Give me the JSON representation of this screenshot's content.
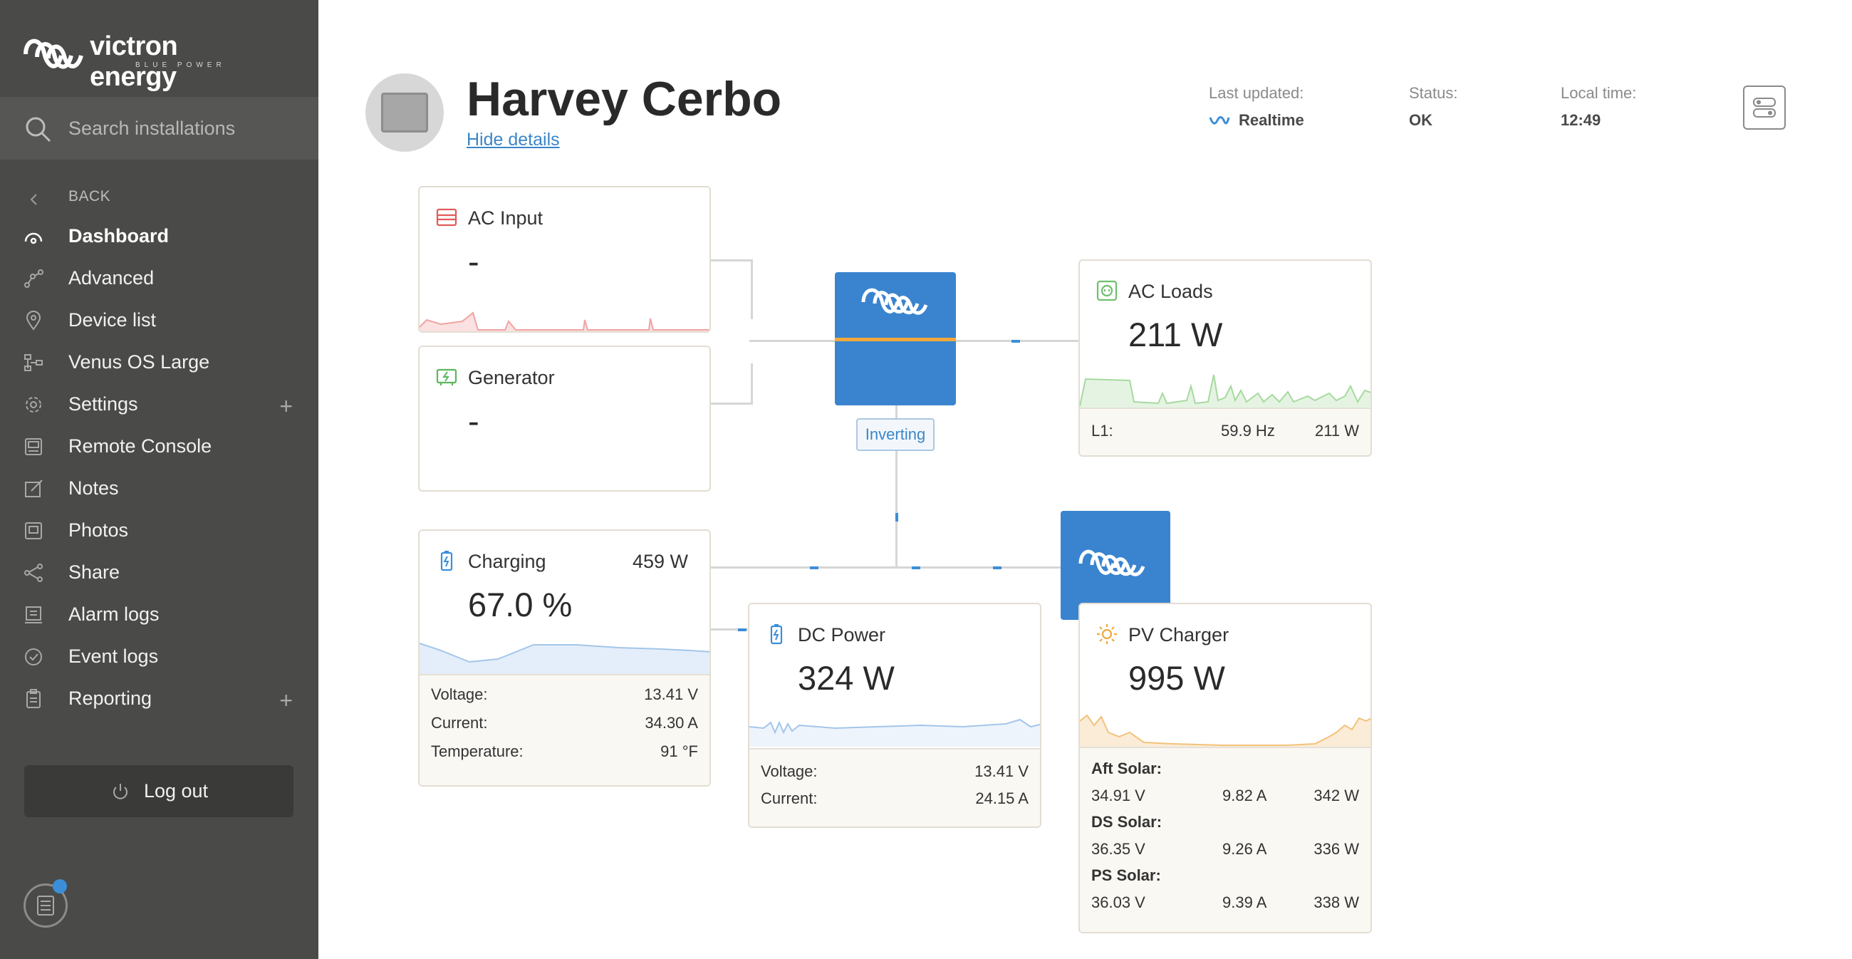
{
  "brand": {
    "name": "victron energy",
    "tagline": "BLUE POWER"
  },
  "search": {
    "placeholder": "Search installations"
  },
  "nav": {
    "back": "BACK",
    "items": [
      {
        "label": "Dashboard",
        "icon": "dashboard-icon"
      },
      {
        "label": "Advanced",
        "icon": "advanced-icon"
      },
      {
        "label": "Device list",
        "icon": "location-pin-icon"
      },
      {
        "label": "Venus OS Large",
        "icon": "network-icon"
      },
      {
        "label": "Settings",
        "icon": "gear-icon"
      },
      {
        "label": "Remote Console",
        "icon": "remote-console-icon"
      },
      {
        "label": "Notes",
        "icon": "pencil-icon"
      },
      {
        "label": "Photos",
        "icon": "photo-icon"
      },
      {
        "label": "Share",
        "icon": "share-icon"
      },
      {
        "label": "Alarm logs",
        "icon": "alarm-log-icon"
      },
      {
        "label": "Event logs",
        "icon": "event-log-icon"
      },
      {
        "label": "Reporting",
        "icon": "clipboard-icon"
      }
    ],
    "logout": "Log out"
  },
  "header": {
    "title": "Harvey Cerbo",
    "hide_details": "Hide details",
    "last_updated_label": "Last updated:",
    "last_updated_value": "Realtime",
    "status_label": "Status:",
    "status_value": "OK",
    "local_time_label": "Local time:",
    "local_time_value": "12:49"
  },
  "cards": {
    "ac_input": {
      "title": "AC Input",
      "value": "-"
    },
    "generator": {
      "title": "Generator",
      "value": "-"
    },
    "ac_loads": {
      "title": "AC Loads",
      "value": "211 W",
      "l1_label": "L1:",
      "l1_freq": "59.9 Hz",
      "l1_power": "211 W"
    },
    "inverter": {
      "state": "Inverting"
    },
    "battery": {
      "title": "Charging",
      "power": "459 W",
      "value": "67.0 %",
      "voltage_label": "Voltage:",
      "voltage": "13.41 V",
      "current_label": "Current:",
      "current": "34.30 A",
      "temp_label": "Temperature:",
      "temp": "91 °F"
    },
    "dc_power": {
      "title": "DC Power",
      "value": "324 W",
      "voltage_label": "Voltage:",
      "voltage": "13.41 V",
      "current_label": "Current:",
      "current": "24.15 A"
    },
    "pv_charger": {
      "title": "PV Charger",
      "value": "995 W",
      "arrays": [
        {
          "name": "Aft Solar:",
          "voltage": "34.91 V",
          "current": "9.82 A",
          "power": "342 W"
        },
        {
          "name": "DS Solar:",
          "voltage": "36.35 V",
          "current": "9.26 A",
          "power": "336 W"
        },
        {
          "name": "PS Solar:",
          "voltage": "36.03 V",
          "current": "9.39 A",
          "power": "338 W"
        }
      ]
    }
  },
  "colors": {
    "sidebar_bg": "#4a4a48",
    "accent_blue": "#3a84cf",
    "ac_input_red": "#e25a5a",
    "generator_green": "#5bb85b",
    "loads_green": "#6dc06d",
    "battery_blue": "#3b8ed8",
    "pv_orange": "#f0a83a"
  }
}
